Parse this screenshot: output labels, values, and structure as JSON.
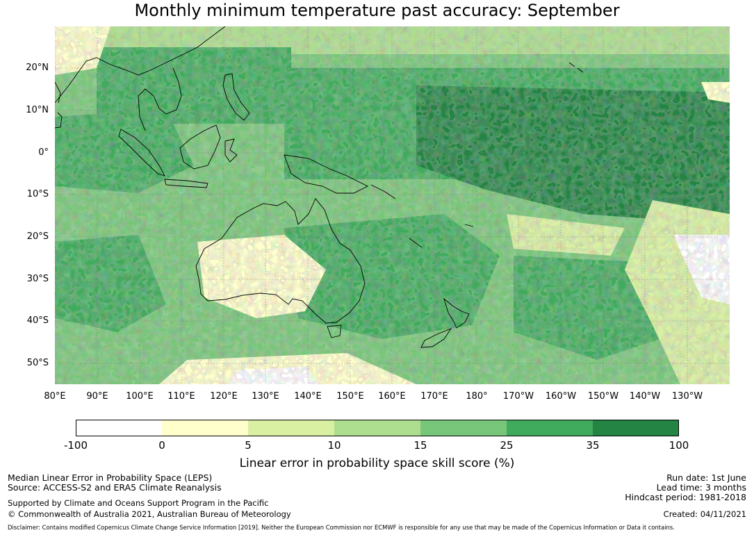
{
  "title": "Monthly minimum temperature past accuracy: September",
  "map": {
    "lat_labels": [
      "20°N",
      "10°N",
      "0°",
      "10°S",
      "20°S",
      "30°S",
      "40°S",
      "50°S"
    ],
    "lon_labels": [
      "80°E",
      "90°E",
      "100°E",
      "110°E",
      "120°E",
      "130°E",
      "140°E",
      "150°E",
      "160°E",
      "170°E",
      "180°",
      "170°W",
      "160°W",
      "150°W",
      "140°W",
      "130°W"
    ],
    "lat_values": [
      20,
      10,
      0,
      -10,
      -20,
      -30,
      -40,
      -50
    ],
    "lon_values": [
      80,
      90,
      100,
      110,
      120,
      130,
      140,
      150,
      160,
      170,
      180,
      190,
      200,
      210,
      220,
      230
    ],
    "extent": {
      "lon_min": 80,
      "lon_max": 240,
      "lat_min": -55.5,
      "lat_max": 29
    }
  },
  "legend": {
    "ticks": [
      "-100",
      "0",
      "5",
      "10",
      "15",
      "25",
      "35",
      "100"
    ],
    "colors": [
      "#ffffff",
      "#ffffcc",
      "#d9f0a3",
      "#addd8e",
      "#78c679",
      "#41ab5d",
      "#238443"
    ],
    "label": "Linear error in probability space skill score (%)"
  },
  "footer": {
    "line1": "Median Linear Error in Probability Space (LEPS)",
    "line2": "Source: ACCESS-S2 and ERA5 Climate Reanalysis",
    "line3": "Supported by Climate and Oceans Support Program in the Pacific",
    "line4": "© Commonwealth of Australia 2021, Australian Bureau of Meteorology",
    "run_date": "Run date: 1st June",
    "lead_time": "Lead time: 3 months",
    "hindcast": "Hindcast period: 1981-2018",
    "created": "Created: 04/11/2021",
    "disclaimer": "Disclaimer: Contains modified Copernicus Climate Change Service Information [2019]. Neither the European Commission nor ECMWF is responsible for any use that may be made of the Copernicus Information or Data it contains."
  }
}
